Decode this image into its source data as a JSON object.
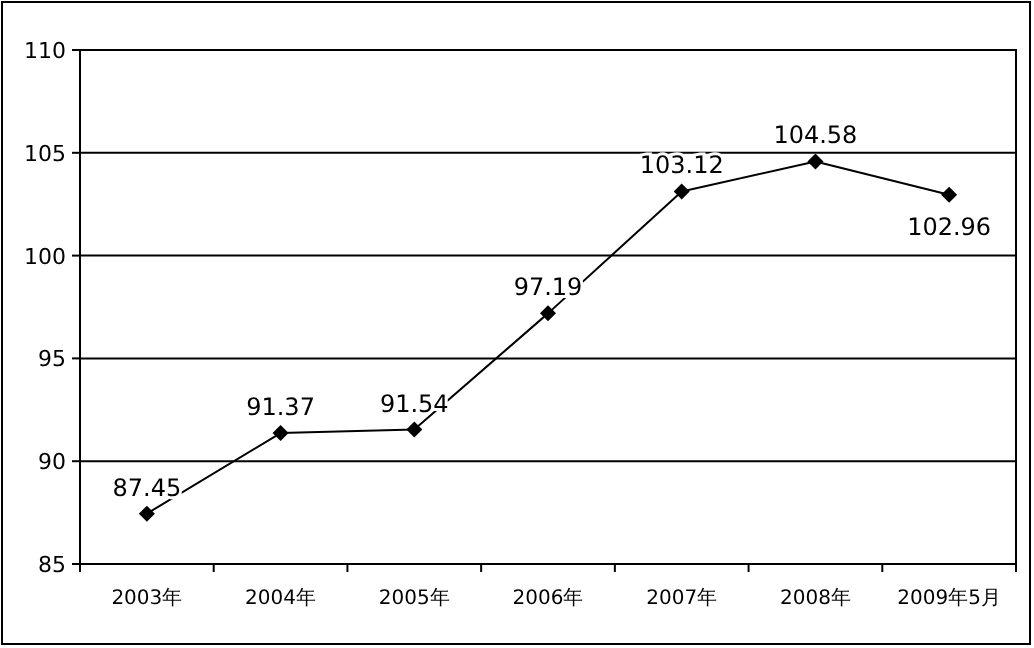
{
  "chart_data": {
    "type": "line",
    "categories": [
      "2003年",
      "2004年",
      "2005年",
      "2006年",
      "2007年",
      "2008年",
      "2009年5月"
    ],
    "series": [
      {
        "color": "#000000",
        "values": [
          87.45,
          91.37,
          91.54,
          97.19,
          103.12,
          104.58,
          102.96
        ]
      }
    ],
    "ylim": [
      85,
      110
    ],
    "yticks": [
      85,
      90,
      95,
      100,
      105,
      110
    ],
    "grid": "y",
    "marker": "diamond",
    "line_style": "solid",
    "data_labels": true
  }
}
